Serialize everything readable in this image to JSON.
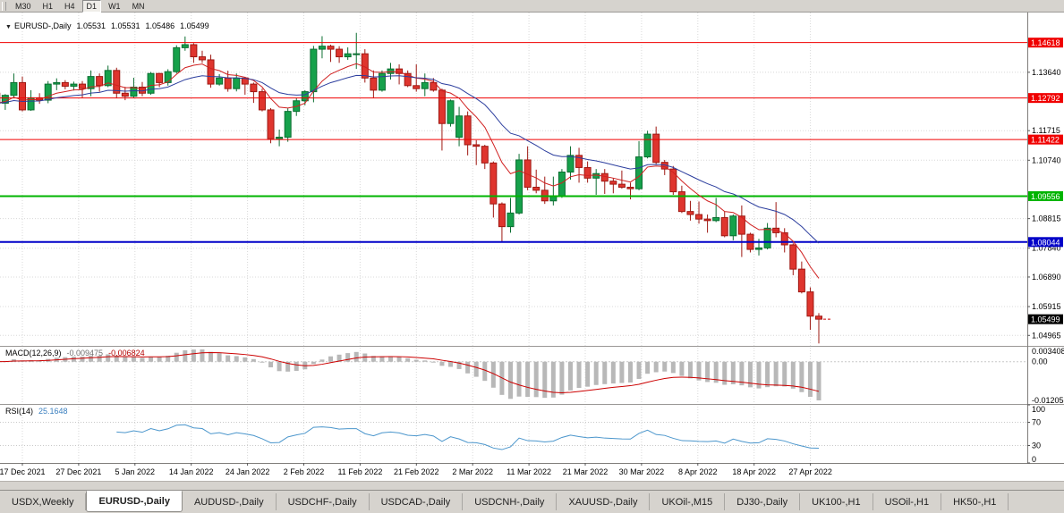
{
  "toolbar": {
    "timeframes": [
      "M30",
      "H1",
      "H4",
      "D1",
      "W1",
      "MN"
    ],
    "active_timeframe": "D1"
  },
  "chart_header": {
    "collapse_icon": "▼",
    "symbol": "EURUSD-,Daily",
    "open": "1.05531",
    "high": "1.05531",
    "low": "1.05486",
    "close": "1.05499"
  },
  "indicators": {
    "macd": {
      "name": "MACD(12,26,9)",
      "main_value": "-0.009475",
      "signal_value": "-0.006824",
      "axis_max": "0.003408",
      "axis_zero": "0.00",
      "axis_min": "-0.012058",
      "params": {
        "fast": 12,
        "slow": 26,
        "signal": 9
      }
    },
    "rsi": {
      "name": "RSI(14)",
      "value": "25.1648",
      "period": 14,
      "axis_labels": [
        "100",
        "70",
        "30",
        "0"
      ],
      "levels": [
        70,
        30
      ]
    }
  },
  "price_axis": {
    "labels": [
      {
        "text": "1.13640",
        "value": 1.1364
      },
      {
        "text": "1.11715",
        "value": 1.11715
      },
      {
        "text": "1.10740",
        "value": 1.1074
      },
      {
        "text": "1.08815",
        "value": 1.08815
      },
      {
        "text": "1.07840",
        "value": 1.0784
      },
      {
        "text": "1.06890",
        "value": 1.0689
      },
      {
        "text": "1.05915",
        "value": 1.05915
      },
      {
        "text": "1.04965",
        "value": 1.04965
      }
    ]
  },
  "time_axis": {
    "labels": [
      "17 Dec 2021",
      "27 Dec 2021",
      "5 Jan 2022",
      "14 Jan 2022",
      "24 Jan 2022",
      "2 Feb 2022",
      "11 Feb 2022",
      "21 Feb 2022",
      "2 Mar 2022",
      "11 Mar 2022",
      "21 Mar 2022",
      "30 Mar 2022",
      "8 Apr 2022",
      "18 Apr 2022",
      "27 Apr 2022"
    ]
  },
  "tabs": {
    "items": [
      "USDX,Weekly",
      "EURUSD-,Daily",
      "AUDUSD-,Daily",
      "USDCHF-,Daily",
      "USDCAD-,Daily",
      "USDCNH-,Daily",
      "XAUUSD-,Daily",
      "UKOil-,M15",
      "DJ30-,Daily",
      "UK100-,H1",
      "USOil-,H1",
      "HK50-,H1"
    ],
    "active": "EURUSD-,Daily"
  },
  "colors": {
    "bull": "#16a14b",
    "bull_border": "#0b6e31",
    "bear": "#df352e",
    "bear_border": "#9e1812",
    "ma_fast": "#d02020",
    "ma_slow": "#2c3e9e",
    "macd_hist": "#b8b8b8",
    "macd_signal": "#cc0000",
    "rsi_line": "#4b96cc",
    "grid": "#d8d8d8"
  },
  "chart_data": {
    "type": "candlestick",
    "symbol": "EURUSD",
    "timeframe": "Daily",
    "x_range": [
      "14 Dec 2021",
      "28 Apr 2022"
    ],
    "price_range": [
      1.0462,
      1.1561
    ],
    "current_price": {
      "label": "1.05499",
      "value": 1.05499
    },
    "horizontal_lines": [
      {
        "label": "1.14618",
        "value": 1.14618,
        "color": "#f00000",
        "width": 1
      },
      {
        "label": "1.12792",
        "value": 1.12792,
        "color": "#f00000",
        "width": 1
      },
      {
        "label": "1.11422",
        "value": 1.11422,
        "color": "#f00000",
        "width": 1
      },
      {
        "label": "1.09556",
        "value": 1.09556,
        "color": "#00b400",
        "width": 2
      },
      {
        "label": "1.08044",
        "value": 1.08044,
        "color": "#0000c8",
        "width": 2
      }
    ],
    "moving_averages": [
      {
        "name": "fast-ma",
        "period": 8,
        "color": "#d02020"
      },
      {
        "name": "slow-ma",
        "period": 20,
        "color": "#2c3e9e"
      }
    ],
    "candles": [
      [
        1.1295,
        1.1305,
        1.1255,
        1.1262
      ],
      [
        1.1262,
        1.1292,
        1.124,
        1.1288
      ],
      [
        1.1288,
        1.136,
        1.128,
        1.133
      ],
      [
        1.133,
        1.135,
        1.1235,
        1.124
      ],
      [
        1.124,
        1.1305,
        1.1237,
        1.128
      ],
      [
        1.128,
        1.1295,
        1.126,
        1.1272
      ],
      [
        1.1272,
        1.1335,
        1.1262,
        1.1325
      ],
      [
        1.1325,
        1.1344,
        1.1305,
        1.133
      ],
      [
        1.133,
        1.1338,
        1.1308,
        1.1318
      ],
      [
        1.1318,
        1.1333,
        1.1304,
        1.1325
      ],
      [
        1.1325,
        1.1335,
        1.128,
        1.131
      ],
      [
        1.131,
        1.137,
        1.1285,
        1.135
      ],
      [
        1.135,
        1.136,
        1.13,
        1.132
      ],
      [
        1.132,
        1.1386,
        1.1315,
        1.137
      ],
      [
        1.137,
        1.1379,
        1.1278,
        1.1295
      ],
      [
        1.1295,
        1.1316,
        1.1272,
        1.1285
      ],
      [
        1.1285,
        1.1346,
        1.128,
        1.1315
      ],
      [
        1.1315,
        1.1332,
        1.1285,
        1.1295
      ],
      [
        1.1295,
        1.1365,
        1.129,
        1.136
      ],
      [
        1.136,
        1.1362,
        1.1315,
        1.133
      ],
      [
        1.133,
        1.1374,
        1.132,
        1.1366
      ],
      [
        1.1366,
        1.1453,
        1.136,
        1.1445
      ],
      [
        1.1445,
        1.1482,
        1.1435,
        1.1455
      ],
      [
        1.1455,
        1.146,
        1.1395,
        1.1415
      ],
      [
        1.1415,
        1.1435,
        1.1395,
        1.1405
      ],
      [
        1.1405,
        1.1422,
        1.1313,
        1.1325
      ],
      [
        1.1325,
        1.1358,
        1.132,
        1.1345
      ],
      [
        1.1345,
        1.1369,
        1.13,
        1.131
      ],
      [
        1.131,
        1.136,
        1.1301,
        1.1345
      ],
      [
        1.1345,
        1.1349,
        1.129,
        1.1325
      ],
      [
        1.1325,
        1.133,
        1.1263,
        1.13
      ],
      [
        1.13,
        1.131,
        1.1235,
        1.124
      ],
      [
        1.124,
        1.1246,
        1.113,
        1.1145
      ],
      [
        1.1145,
        1.1175,
        1.112,
        1.115
      ],
      [
        1.115,
        1.1245,
        1.1135,
        1.1235
      ],
      [
        1.1235,
        1.128,
        1.122,
        1.127
      ],
      [
        1.127,
        1.1305,
        1.1255,
        1.13
      ],
      [
        1.13,
        1.1451,
        1.1265,
        1.144
      ],
      [
        1.144,
        1.1483,
        1.141,
        1.145
      ],
      [
        1.145,
        1.1455,
        1.1398,
        1.144
      ],
      [
        1.144,
        1.145,
        1.1395,
        1.1415
      ],
      [
        1.1415,
        1.1446,
        1.1405,
        1.1425
      ],
      [
        1.1425,
        1.1494,
        1.1375,
        1.1425
      ],
      [
        1.1425,
        1.144,
        1.133,
        1.1345
      ],
      [
        1.1345,
        1.137,
        1.128,
        1.1305
      ],
      [
        1.1305,
        1.137,
        1.13,
        1.136
      ],
      [
        1.136,
        1.1395,
        1.134,
        1.1375
      ],
      [
        1.1375,
        1.139,
        1.1324,
        1.136
      ],
      [
        1.136,
        1.137,
        1.1315,
        1.132
      ],
      [
        1.132,
        1.139,
        1.13,
        1.131
      ],
      [
        1.131,
        1.136,
        1.1285,
        1.133
      ],
      [
        1.133,
        1.1345,
        1.13,
        1.1305
      ],
      [
        1.1305,
        1.131,
        1.1106,
        1.1195
      ],
      [
        1.1195,
        1.1274,
        1.1185,
        1.127
      ],
      [
        1.115,
        1.125,
        1.112,
        1.122
      ],
      [
        1.122,
        1.1235,
        1.109,
        1.1125
      ],
      [
        1.1125,
        1.114,
        1.1058,
        1.112
      ],
      [
        1.112,
        1.1125,
        1.1045,
        1.1065
      ],
      [
        1.1065,
        1.107,
        1.0885,
        1.093
      ],
      [
        1.093,
        1.0935,
        1.0806,
        1.0855
      ],
      [
        1.0855,
        1.095,
        1.0835,
        1.09
      ],
      [
        1.09,
        1.1095,
        1.0895,
        1.1075
      ],
      [
        1.1075,
        1.112,
        1.0975,
        1.0985
      ],
      [
        1.0985,
        1.1043,
        1.0965,
        1.0975
      ],
      [
        1.0975,
        1.102,
        1.093,
        1.094
      ],
      [
        1.094,
        1.102,
        1.0925,
        1.0955
      ],
      [
        1.0955,
        1.1045,
        1.095,
        1.1035
      ],
      [
        1.1035,
        1.112,
        1.101,
        1.109
      ],
      [
        1.109,
        1.1115,
        1.1,
        1.105
      ],
      [
        1.105,
        1.107,
        1.1,
        1.1015
      ],
      [
        1.1015,
        1.1045,
        1.096,
        1.103
      ],
      [
        1.103,
        1.1045,
        1.0963,
        1.1005
      ],
      [
        1.1005,
        1.1015,
        1.0965,
        1.0995
      ],
      [
        1.0995,
        1.104,
        1.098,
        1.0985
      ],
      [
        1.0985,
        1.1,
        1.0945,
        1.098
      ],
      [
        1.098,
        1.1137,
        1.0975,
        1.1085
      ],
      [
        1.1085,
        1.1171,
        1.108,
        1.116
      ],
      [
        1.116,
        1.1185,
        1.106,
        1.1067
      ],
      [
        1.1067,
        1.1075,
        1.1025,
        1.1045
      ],
      [
        1.1045,
        1.1055,
        1.096,
        1.097
      ],
      [
        1.097,
        1.099,
        1.09,
        1.0905
      ],
      [
        1.0905,
        1.094,
        1.0875,
        1.0895
      ],
      [
        1.0895,
        1.0938,
        1.0865,
        1.088
      ],
      [
        1.088,
        1.0895,
        1.0835,
        1.0875
      ],
      [
        1.0875,
        1.095,
        1.087,
        1.0885
      ],
      [
        1.0885,
        1.0905,
        1.082,
        1.0825
      ],
      [
        1.0825,
        1.0895,
        1.081,
        1.089
      ],
      [
        1.089,
        1.0925,
        1.0755,
        1.083
      ],
      [
        1.083,
        1.0835,
        1.077,
        1.078
      ],
      [
        1.078,
        1.0815,
        1.076,
        1.0785
      ],
      [
        1.0785,
        1.0867,
        1.078,
        1.085
      ],
      [
        1.085,
        1.0936,
        1.082,
        1.0835
      ],
      [
        1.0835,
        1.085,
        1.077,
        1.0795
      ],
      [
        1.0795,
        1.08,
        1.0695,
        1.0715
      ],
      [
        1.0715,
        1.074,
        1.0635,
        1.064
      ],
      [
        1.064,
        1.0655,
        1.0515,
        1.056
      ],
      [
        1.056,
        1.057,
        1.047,
        1.055
      ]
    ]
  }
}
